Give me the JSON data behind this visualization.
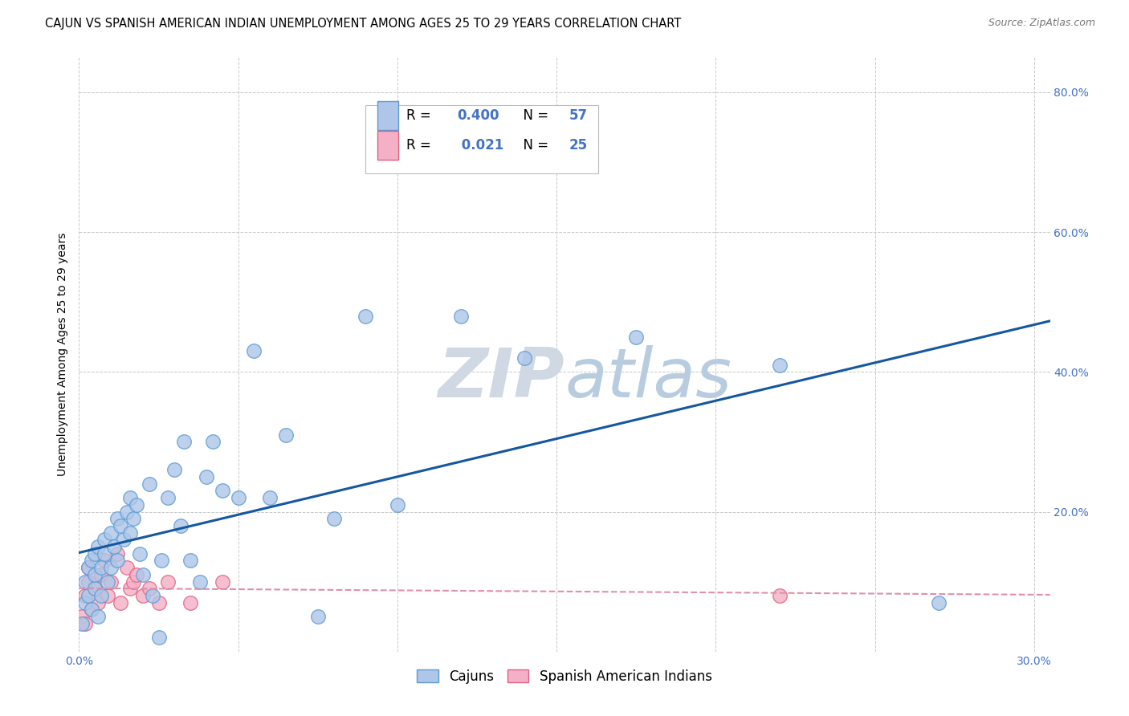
{
  "title": "CAJUN VS SPANISH AMERICAN INDIAN UNEMPLOYMENT AMONG AGES 25 TO 29 YEARS CORRELATION CHART",
  "source": "Source: ZipAtlas.com",
  "ylabel": "Unemployment Among Ages 25 to 29 years",
  "xlim": [
    0.0,
    0.305
  ],
  "ylim": [
    0.0,
    0.85
  ],
  "xticks": [
    0.0,
    0.05,
    0.1,
    0.15,
    0.2,
    0.25,
    0.3
  ],
  "yticks": [
    0.0,
    0.2,
    0.4,
    0.6,
    0.8
  ],
  "cajun_face": "#aec6e8",
  "cajun_edge": "#5b9bd5",
  "spanish_face": "#f4b0c6",
  "spanish_edge": "#e06080",
  "reg_cajun": "#1558a0",
  "reg_spanish": "#e090a8",
  "watermark_color": "#cdd9e8",
  "tick_color": "#4472c4",
  "grid_color": "#c8c8c8",
  "bg_color": "#ffffff",
  "cajun_x": [
    0.001,
    0.002,
    0.002,
    0.003,
    0.003,
    0.004,
    0.004,
    0.005,
    0.005,
    0.005,
    0.006,
    0.006,
    0.007,
    0.007,
    0.008,
    0.008,
    0.009,
    0.01,
    0.01,
    0.011,
    0.012,
    0.012,
    0.013,
    0.014,
    0.015,
    0.016,
    0.016,
    0.017,
    0.018,
    0.019,
    0.02,
    0.022,
    0.023,
    0.025,
    0.026,
    0.028,
    0.03,
    0.032,
    0.033,
    0.035,
    0.038,
    0.04,
    0.042,
    0.045,
    0.05,
    0.055,
    0.06,
    0.065,
    0.075,
    0.08,
    0.09,
    0.1,
    0.12,
    0.14,
    0.175,
    0.22,
    0.27
  ],
  "cajun_y": [
    0.04,
    0.07,
    0.1,
    0.12,
    0.08,
    0.06,
    0.13,
    0.14,
    0.09,
    0.11,
    0.05,
    0.15,
    0.12,
    0.08,
    0.16,
    0.14,
    0.1,
    0.12,
    0.17,
    0.15,
    0.13,
    0.19,
    0.18,
    0.16,
    0.2,
    0.17,
    0.22,
    0.19,
    0.21,
    0.14,
    0.11,
    0.24,
    0.08,
    0.02,
    0.13,
    0.22,
    0.26,
    0.18,
    0.3,
    0.13,
    0.1,
    0.25,
    0.3,
    0.23,
    0.22,
    0.43,
    0.22,
    0.31,
    0.05,
    0.19,
    0.48,
    0.21,
    0.48,
    0.42,
    0.45,
    0.41,
    0.07
  ],
  "spanish_x": [
    0.001,
    0.002,
    0.002,
    0.003,
    0.003,
    0.004,
    0.005,
    0.006,
    0.007,
    0.008,
    0.009,
    0.01,
    0.012,
    0.013,
    0.015,
    0.016,
    0.017,
    0.018,
    0.02,
    0.022,
    0.025,
    0.028,
    0.035,
    0.045,
    0.22
  ],
  "spanish_y": [
    0.05,
    0.08,
    0.04,
    0.1,
    0.12,
    0.06,
    0.09,
    0.07,
    0.11,
    0.13,
    0.08,
    0.1,
    0.14,
    0.07,
    0.12,
    0.09,
    0.1,
    0.11,
    0.08,
    0.09,
    0.07,
    0.1,
    0.07,
    0.1,
    0.08
  ],
  "title_fontsize": 10.5,
  "tick_fontsize": 10,
  "legend_fontsize": 12
}
